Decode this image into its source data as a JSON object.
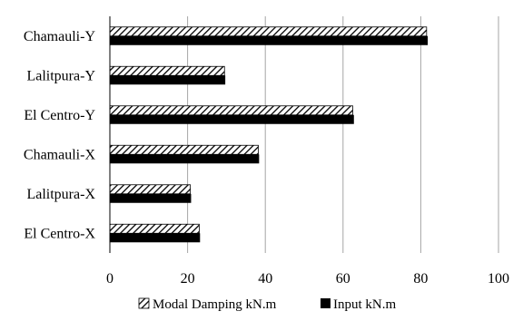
{
  "chart_data": {
    "type": "bar",
    "orientation": "horizontal",
    "categories": [
      "Chamauli-Y",
      "Lalitpura-Y",
      "El Centro-Y",
      "Chamauli-X",
      "Lalitpura-X",
      "El Centro-X"
    ],
    "series": [
      {
        "name": "Modal Damping kN.m",
        "pattern": "hatched",
        "values": [
          81.5,
          29.5,
          62.5,
          38.2,
          20.7,
          23.0
        ]
      },
      {
        "name": "Input kN.m",
        "pattern": "solid",
        "color": "#000000",
        "values": [
          81.8,
          29.7,
          62.8,
          38.4,
          20.9,
          23.2
        ]
      }
    ],
    "xlim": [
      0,
      100
    ],
    "xticks": [
      "0",
      "20",
      "40",
      "60",
      "80",
      "100"
    ],
    "grid": "vertical",
    "legend": "bottom"
  }
}
